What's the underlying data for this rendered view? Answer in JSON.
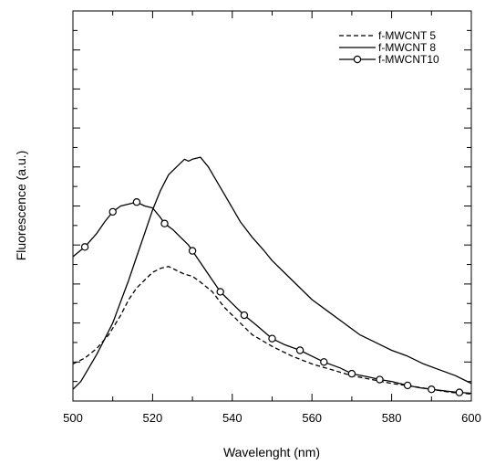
{
  "chart_data": {
    "type": "line",
    "title": "",
    "xlabel": "Wavelenght (nm)",
    "ylabel": "Fluorescence (a.u.)",
    "xlim": [
      500,
      600
    ],
    "ylim": [
      0,
      1
    ],
    "x_ticks": [
      500,
      520,
      540,
      560,
      580,
      600
    ],
    "y_tick_labels_shown": false,
    "grid": false,
    "legend_position": "top-right",
    "series": [
      {
        "name": "f-MWCNT 5",
        "style": "dashed",
        "color": "#000000",
        "points": [
          [
            500,
            0.095
          ],
          [
            503,
            0.11
          ],
          [
            506,
            0.135
          ],
          [
            509,
            0.17
          ],
          [
            512,
            0.22
          ],
          [
            514,
            0.26
          ],
          [
            516,
            0.29
          ],
          [
            518,
            0.31
          ],
          [
            520,
            0.33
          ],
          [
            522,
            0.34
          ],
          [
            524,
            0.345
          ],
          [
            526,
            0.335
          ],
          [
            528,
            0.325
          ],
          [
            530,
            0.32
          ],
          [
            532,
            0.305
          ],
          [
            535,
            0.28
          ],
          [
            538,
            0.24
          ],
          [
            541,
            0.21
          ],
          [
            545,
            0.17
          ],
          [
            550,
            0.14
          ],
          [
            555,
            0.115
          ],
          [
            560,
            0.095
          ],
          [
            565,
            0.08
          ],
          [
            570,
            0.065
          ],
          [
            575,
            0.055
          ],
          [
            580,
            0.045
          ],
          [
            585,
            0.038
          ],
          [
            590,
            0.03
          ],
          [
            595,
            0.022
          ],
          [
            600,
            0.018
          ]
        ]
      },
      {
        "name": "f-MWCNT 8",
        "style": "solid",
        "color": "#000000",
        "points": [
          [
            500,
            0.03
          ],
          [
            502,
            0.05
          ],
          [
            504,
            0.085
          ],
          [
            506,
            0.12
          ],
          [
            508,
            0.16
          ],
          [
            510,
            0.2
          ],
          [
            512,
            0.255
          ],
          [
            514,
            0.31
          ],
          [
            516,
            0.37
          ],
          [
            518,
            0.43
          ],
          [
            520,
            0.49
          ],
          [
            522,
            0.54
          ],
          [
            524,
            0.58
          ],
          [
            526,
            0.6
          ],
          [
            528,
            0.62
          ],
          [
            529,
            0.615
          ],
          [
            530,
            0.62
          ],
          [
            532,
            0.625
          ],
          [
            534,
            0.6
          ],
          [
            536,
            0.565
          ],
          [
            538,
            0.53
          ],
          [
            540,
            0.495
          ],
          [
            542,
            0.46
          ],
          [
            545,
            0.42
          ],
          [
            548,
            0.385
          ],
          [
            550,
            0.36
          ],
          [
            553,
            0.33
          ],
          [
            556,
            0.3
          ],
          [
            560,
            0.26
          ],
          [
            564,
            0.23
          ],
          [
            568,
            0.2
          ],
          [
            572,
            0.17
          ],
          [
            576,
            0.15
          ],
          [
            580,
            0.13
          ],
          [
            584,
            0.115
          ],
          [
            588,
            0.095
          ],
          [
            592,
            0.08
          ],
          [
            596,
            0.065
          ],
          [
            600,
            0.045
          ]
        ]
      },
      {
        "name": "f-MWCNT10",
        "style": "solid-circle",
        "color": "#000000",
        "points": [
          [
            500,
            0.37
          ],
          [
            503,
            0.395
          ],
          [
            506,
            0.43
          ],
          [
            508,
            0.46
          ],
          [
            510,
            0.485
          ],
          [
            512,
            0.5
          ],
          [
            514,
            0.505
          ],
          [
            516,
            0.51
          ],
          [
            518,
            0.5
          ],
          [
            520,
            0.495
          ],
          [
            522,
            0.47
          ],
          [
            523,
            0.455
          ],
          [
            525,
            0.44
          ],
          [
            527,
            0.42
          ],
          [
            529,
            0.4
          ],
          [
            530,
            0.385
          ],
          [
            532,
            0.355
          ],
          [
            535,
            0.31
          ],
          [
            537,
            0.28
          ],
          [
            540,
            0.25
          ],
          [
            543,
            0.22
          ],
          [
            546,
            0.195
          ],
          [
            550,
            0.16
          ],
          [
            553,
            0.145
          ],
          [
            557,
            0.13
          ],
          [
            560,
            0.115
          ],
          [
            563,
            0.1
          ],
          [
            567,
            0.085
          ],
          [
            570,
            0.07
          ],
          [
            574,
            0.062
          ],
          [
            577,
            0.055
          ],
          [
            580,
            0.05
          ],
          [
            584,
            0.04
          ],
          [
            587,
            0.034
          ],
          [
            590,
            0.03
          ],
          [
            594,
            0.025
          ],
          [
            597,
            0.022
          ],
          [
            600,
            0.02
          ]
        ],
        "markers": [
          [
            503,
            0.395
          ],
          [
            510,
            0.485
          ],
          [
            516,
            0.51
          ],
          [
            523,
            0.455
          ],
          [
            530,
            0.385
          ],
          [
            537,
            0.28
          ],
          [
            543,
            0.22
          ],
          [
            550,
            0.16
          ],
          [
            557,
            0.13
          ],
          [
            563,
            0.1
          ],
          [
            570,
            0.07
          ],
          [
            577,
            0.055
          ],
          [
            584,
            0.04
          ],
          [
            590,
            0.03
          ],
          [
            597,
            0.022
          ]
        ]
      }
    ]
  }
}
